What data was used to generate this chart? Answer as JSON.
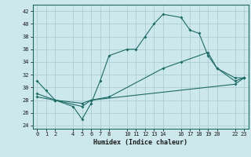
{
  "xlabel": "Humidex (Indice chaleur)",
  "bg_color": "#cce8ec",
  "grid_color": "#aacdd4",
  "line_color": "#1e6b65",
  "xlim": [
    -0.5,
    23.5
  ],
  "ylim": [
    23.5,
    43.0
  ],
  "xticks": [
    0,
    1,
    2,
    4,
    5,
    6,
    7,
    8,
    10,
    11,
    12,
    13,
    14,
    16,
    17,
    18,
    19,
    20,
    22,
    23
  ],
  "yticks": [
    24,
    26,
    28,
    30,
    32,
    34,
    36,
    38,
    40,
    42
  ],
  "line1_x": [
    0,
    1,
    2,
    4,
    5,
    6,
    7,
    8,
    10,
    11,
    12,
    13,
    14,
    16,
    17,
    18,
    19,
    20,
    22,
    23
  ],
  "line1_y": [
    31,
    29.5,
    28,
    27,
    25,
    27.5,
    31,
    35,
    36,
    36,
    38,
    40,
    41.5,
    41,
    39,
    38.5,
    35,
    33,
    31.5,
    31.5
  ],
  "line2_x": [
    0,
    2,
    5,
    6,
    8,
    14,
    16,
    19,
    20,
    22,
    23
  ],
  "line2_y": [
    29,
    28,
    27,
    28,
    28.5,
    33,
    34,
    35.5,
    33,
    31,
    31.5
  ],
  "line3_x": [
    0,
    2,
    5,
    6,
    22,
    23
  ],
  "line3_y": [
    28.5,
    28,
    27.5,
    28,
    30.5,
    31.5
  ]
}
